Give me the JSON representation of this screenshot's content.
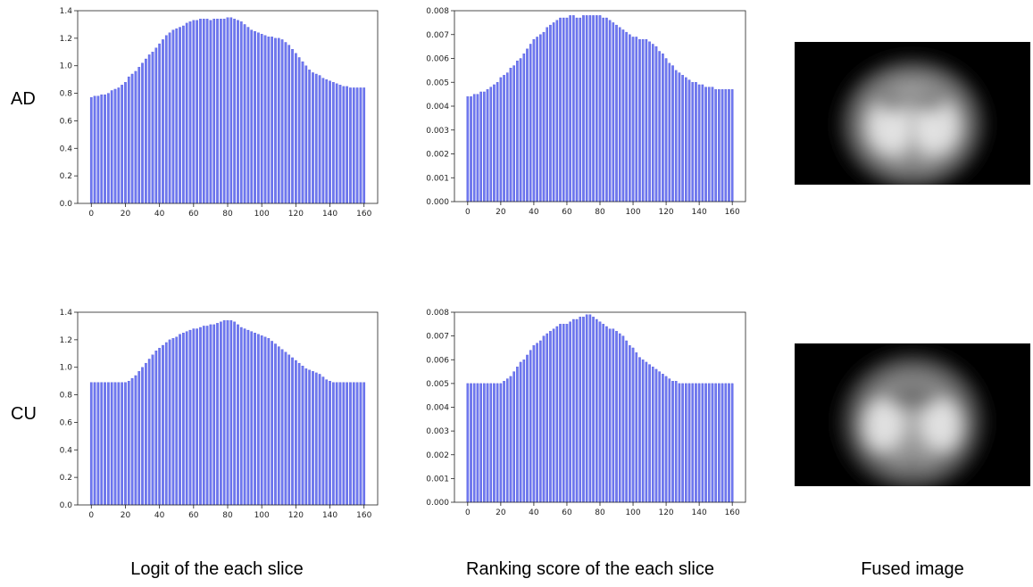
{
  "row_labels": [
    "AD",
    "CU"
  ],
  "captions": [
    "Logit of the each slice",
    "Ranking score of the each slice",
    "Fused image"
  ],
  "colors": {
    "bar": "#6f78f0",
    "bar_edge": "#3f49d8"
  },
  "chart_data": [
    {
      "type": "bar",
      "row": "AD",
      "column": "Logit of the each slice",
      "xlim": [
        -8,
        168
      ],
      "ylim": [
        0,
        1.4
      ],
      "xticks": [
        0,
        20,
        40,
        60,
        80,
        100,
        120,
        140,
        160
      ],
      "yticks": [
        "0.0",
        "0.2",
        "0.4",
        "0.6",
        "0.8",
        "1.0",
        "1.2",
        "1.4"
      ],
      "x": [
        0,
        2,
        4,
        6,
        8,
        10,
        12,
        14,
        16,
        18,
        20,
        22,
        24,
        26,
        28,
        30,
        32,
        34,
        36,
        38,
        40,
        42,
        44,
        46,
        48,
        50,
        52,
        54,
        56,
        58,
        60,
        62,
        64,
        66,
        68,
        70,
        72,
        74,
        76,
        78,
        80,
        82,
        84,
        86,
        88,
        90,
        92,
        94,
        96,
        98,
        100,
        102,
        104,
        106,
        108,
        110,
        112,
        114,
        116,
        118,
        120,
        122,
        124,
        126,
        128,
        130,
        132,
        134,
        136,
        138,
        140,
        142,
        144,
        146,
        148,
        150,
        152,
        154,
        156,
        158,
        160
      ],
      "values": [
        0.77,
        0.78,
        0.78,
        0.79,
        0.79,
        0.8,
        0.82,
        0.83,
        0.84,
        0.86,
        0.88,
        0.92,
        0.94,
        0.96,
        0.99,
        1.02,
        1.05,
        1.08,
        1.1,
        1.13,
        1.16,
        1.19,
        1.22,
        1.24,
        1.26,
        1.27,
        1.28,
        1.29,
        1.31,
        1.32,
        1.33,
        1.33,
        1.34,
        1.34,
        1.34,
        1.33,
        1.34,
        1.34,
        1.34,
        1.34,
        1.35,
        1.35,
        1.34,
        1.33,
        1.32,
        1.3,
        1.28,
        1.26,
        1.25,
        1.24,
        1.23,
        1.22,
        1.21,
        1.21,
        1.2,
        1.2,
        1.19,
        1.17,
        1.15,
        1.12,
        1.09,
        1.06,
        1.03,
        1.0,
        0.97,
        0.95,
        0.94,
        0.93,
        0.91,
        0.9,
        0.89,
        0.88,
        0.87,
        0.86,
        0.85,
        0.85,
        0.84,
        0.84,
        0.84,
        0.84,
        0.84
      ]
    },
    {
      "type": "bar",
      "row": "AD",
      "column": "Ranking score of the each slice",
      "xlim": [
        -8,
        168
      ],
      "ylim": [
        0,
        0.008
      ],
      "xticks": [
        0,
        20,
        40,
        60,
        80,
        100,
        120,
        140,
        160
      ],
      "yticks": [
        "0.000",
        "0.001",
        "0.002",
        "0.003",
        "0.004",
        "0.005",
        "0.006",
        "0.007",
        "0.008"
      ],
      "x": [
        0,
        2,
        4,
        6,
        8,
        10,
        12,
        14,
        16,
        18,
        20,
        22,
        24,
        26,
        28,
        30,
        32,
        34,
        36,
        38,
        40,
        42,
        44,
        46,
        48,
        50,
        52,
        54,
        56,
        58,
        60,
        62,
        64,
        66,
        68,
        70,
        72,
        74,
        76,
        78,
        80,
        82,
        84,
        86,
        88,
        90,
        92,
        94,
        96,
        98,
        100,
        102,
        104,
        106,
        108,
        110,
        112,
        114,
        116,
        118,
        120,
        122,
        124,
        126,
        128,
        130,
        132,
        134,
        136,
        138,
        140,
        142,
        144,
        146,
        148,
        150,
        152,
        154,
        156,
        158,
        160
      ],
      "values": [
        0.0044,
        0.0044,
        0.0045,
        0.0045,
        0.0046,
        0.0046,
        0.0047,
        0.0048,
        0.0049,
        0.005,
        0.0052,
        0.0053,
        0.0054,
        0.0056,
        0.0057,
        0.0059,
        0.006,
        0.0062,
        0.0064,
        0.0066,
        0.0068,
        0.0069,
        0.007,
        0.0071,
        0.0073,
        0.0074,
        0.0075,
        0.0076,
        0.0077,
        0.0077,
        0.0077,
        0.0078,
        0.0078,
        0.0077,
        0.0077,
        0.0078,
        0.0078,
        0.0078,
        0.0078,
        0.0078,
        0.0078,
        0.0077,
        0.0077,
        0.0076,
        0.0075,
        0.0074,
        0.0073,
        0.0072,
        0.0071,
        0.007,
        0.0069,
        0.0069,
        0.0068,
        0.0068,
        0.0068,
        0.0067,
        0.0066,
        0.0065,
        0.0063,
        0.0062,
        0.006,
        0.0058,
        0.0057,
        0.0055,
        0.0054,
        0.0053,
        0.0052,
        0.0051,
        0.005,
        0.005,
        0.0049,
        0.0049,
        0.0048,
        0.0048,
        0.0048,
        0.0047,
        0.0047,
        0.0047,
        0.0047,
        0.0047,
        0.0047
      ]
    },
    {
      "type": "bar",
      "row": "CU",
      "column": "Logit of the each slice",
      "xlim": [
        -8,
        168
      ],
      "ylim": [
        0,
        1.4
      ],
      "xticks": [
        0,
        20,
        40,
        60,
        80,
        100,
        120,
        140,
        160
      ],
      "yticks": [
        "0.0",
        "0.2",
        "0.4",
        "0.6",
        "0.8",
        "1.0",
        "1.2",
        "1.4"
      ],
      "x": [
        0,
        2,
        4,
        6,
        8,
        10,
        12,
        14,
        16,
        18,
        20,
        22,
        24,
        26,
        28,
        30,
        32,
        34,
        36,
        38,
        40,
        42,
        44,
        46,
        48,
        50,
        52,
        54,
        56,
        58,
        60,
        62,
        64,
        66,
        68,
        70,
        72,
        74,
        76,
        78,
        80,
        82,
        84,
        86,
        88,
        90,
        92,
        94,
        96,
        98,
        100,
        102,
        104,
        106,
        108,
        110,
        112,
        114,
        116,
        118,
        120,
        122,
        124,
        126,
        128,
        130,
        132,
        134,
        136,
        138,
        140,
        142,
        144,
        146,
        148,
        150,
        152,
        154,
        156,
        158,
        160
      ],
      "values": [
        0.89,
        0.89,
        0.89,
        0.89,
        0.89,
        0.89,
        0.89,
        0.89,
        0.89,
        0.89,
        0.89,
        0.9,
        0.92,
        0.94,
        0.97,
        1.0,
        1.03,
        1.06,
        1.09,
        1.12,
        1.14,
        1.16,
        1.18,
        1.2,
        1.21,
        1.22,
        1.24,
        1.25,
        1.26,
        1.27,
        1.28,
        1.28,
        1.29,
        1.3,
        1.3,
        1.31,
        1.31,
        1.32,
        1.33,
        1.34,
        1.34,
        1.34,
        1.33,
        1.31,
        1.29,
        1.28,
        1.27,
        1.26,
        1.25,
        1.24,
        1.23,
        1.22,
        1.21,
        1.19,
        1.17,
        1.15,
        1.13,
        1.11,
        1.09,
        1.07,
        1.05,
        1.03,
        1.01,
        0.99,
        0.98,
        0.97,
        0.96,
        0.95,
        0.93,
        0.91,
        0.9,
        0.89,
        0.89,
        0.89,
        0.89,
        0.89,
        0.89,
        0.89,
        0.89,
        0.89,
        0.89
      ]
    },
    {
      "type": "bar",
      "row": "CU",
      "column": "Ranking score of the each slice",
      "xlim": [
        -8,
        168
      ],
      "ylim": [
        0,
        0.008
      ],
      "xticks": [
        0,
        20,
        40,
        60,
        80,
        100,
        120,
        140,
        160
      ],
      "yticks": [
        "0.000",
        "0.001",
        "0.002",
        "0.003",
        "0.004",
        "0.005",
        "0.006",
        "0.007",
        "0.008"
      ],
      "x": [
        0,
        2,
        4,
        6,
        8,
        10,
        12,
        14,
        16,
        18,
        20,
        22,
        24,
        26,
        28,
        30,
        32,
        34,
        36,
        38,
        40,
        42,
        44,
        46,
        48,
        50,
        52,
        54,
        56,
        58,
        60,
        62,
        64,
        66,
        68,
        70,
        72,
        74,
        76,
        78,
        80,
        82,
        84,
        86,
        88,
        90,
        92,
        94,
        96,
        98,
        100,
        102,
        104,
        106,
        108,
        110,
        112,
        114,
        116,
        118,
        120,
        122,
        124,
        126,
        128,
        130,
        132,
        134,
        136,
        138,
        140,
        142,
        144,
        146,
        148,
        150,
        152,
        154,
        156,
        158,
        160
      ],
      "values": [
        0.005,
        0.005,
        0.005,
        0.005,
        0.005,
        0.005,
        0.005,
        0.005,
        0.005,
        0.005,
        0.005,
        0.0051,
        0.0052,
        0.0053,
        0.0055,
        0.0057,
        0.0059,
        0.006,
        0.0062,
        0.0064,
        0.0066,
        0.0067,
        0.0068,
        0.007,
        0.0071,
        0.0072,
        0.0073,
        0.0074,
        0.0075,
        0.0075,
        0.0075,
        0.0076,
        0.0077,
        0.0077,
        0.0078,
        0.0078,
        0.0079,
        0.0079,
        0.0078,
        0.0077,
        0.0076,
        0.0075,
        0.0074,
        0.0073,
        0.0073,
        0.0072,
        0.0071,
        0.007,
        0.0068,
        0.0066,
        0.0065,
        0.0063,
        0.0061,
        0.006,
        0.0059,
        0.0058,
        0.0057,
        0.0056,
        0.0055,
        0.0054,
        0.0053,
        0.0052,
        0.0051,
        0.0051,
        0.005,
        0.005,
        0.005,
        0.005,
        0.005,
        0.005,
        0.005,
        0.005,
        0.005,
        0.005,
        0.005,
        0.005,
        0.005,
        0.005,
        0.005,
        0.005,
        0.005
      ]
    }
  ]
}
